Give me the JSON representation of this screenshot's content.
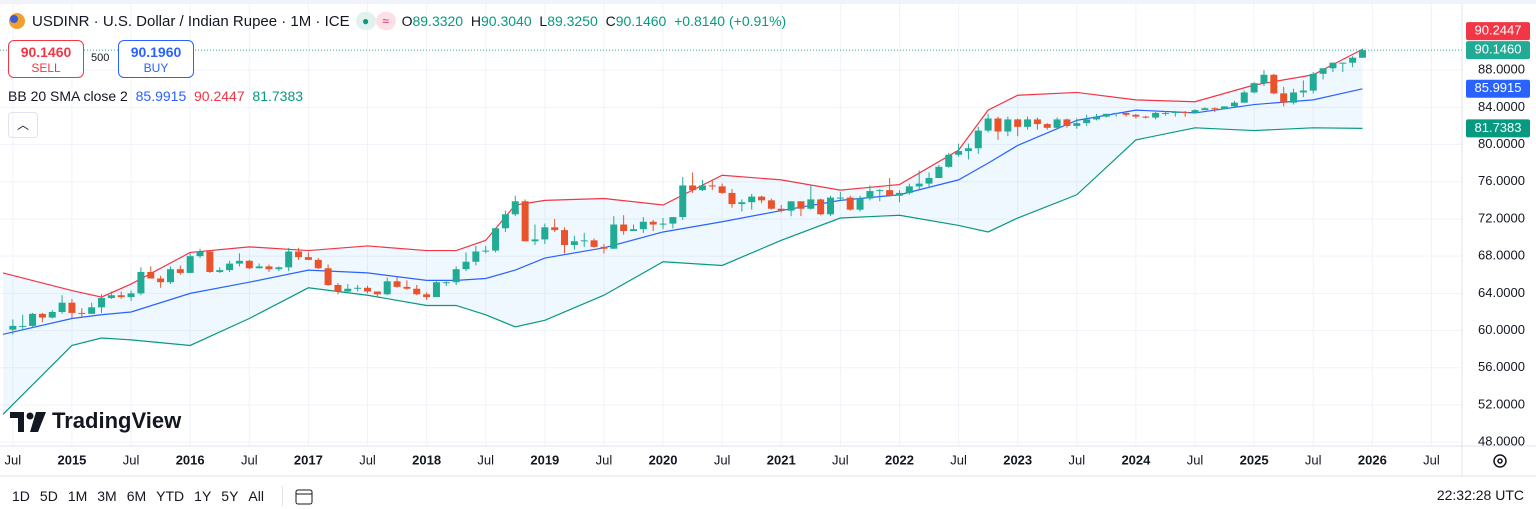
{
  "header": {
    "symbol": "USDINR · U.S. Dollar / Indian Rupee · 1M · ICE",
    "o_label": "O",
    "open": "89.3320",
    "h_label": "H",
    "high": "90.3040",
    "l_label": "L",
    "low": "89.3250",
    "c_label": "C",
    "change": "+0.8140 (+0.91%)"
  },
  "trade": {
    "sell_price": "90.1460",
    "sell": "SELL",
    "quantity": "500",
    "buy_price": "90.1960",
    "buy": "BUY"
  },
  "logo": "TradingView",
  "toolbar": {
    "ranges": [
      "1D",
      "5D",
      "1M",
      "3M",
      "6M",
      "YTD",
      "1Y",
      "5Y",
      "All"
    ],
    "clock": "22:32:28 UTC"
  },
  "chart_data": {
    "type": "candlestick",
    "up_color": "#22ab94",
    "down_color": "#e8532b",
    "grid": true,
    "xlim": [
      "2014-06",
      "2026-10"
    ],
    "ylim": [
      47.7,
      95.0
    ],
    "yticks": [
      {
        "value": 48,
        "label": "48.0000"
      },
      {
        "value": 52,
        "label": "52.0000"
      },
      {
        "value": 56,
        "label": "56.0000"
      },
      {
        "value": 60,
        "label": "60.0000"
      },
      {
        "value": 64,
        "label": "64.0000"
      },
      {
        "value": 68,
        "label": "68.0000"
      },
      {
        "value": 72,
        "label": "72.0000"
      },
      {
        "value": 76,
        "label": "76.0000"
      },
      {
        "value": 80,
        "label": "80.0000"
      },
      {
        "value": 84,
        "label": "84.0000"
      },
      {
        "value": 88,
        "label": "88.0000"
      }
    ],
    "xticks": [
      {
        "value": "2014-07",
        "label": "Jul"
      },
      {
        "value": "2015-01",
        "label": "2015"
      },
      {
        "value": "2015-07",
        "label": "Jul"
      },
      {
        "value": "2016-01",
        "label": "2016"
      },
      {
        "value": "2016-07",
        "label": "Jul"
      },
      {
        "value": "2017-01",
        "label": "2017"
      },
      {
        "value": "2017-07",
        "label": "Jul"
      },
      {
        "value": "2018-01",
        "label": "2018"
      },
      {
        "value": "2018-07",
        "label": "Jul"
      },
      {
        "value": "2019-01",
        "label": "2019"
      },
      {
        "value": "2019-07",
        "label": "Jul"
      },
      {
        "value": "2020-01",
        "label": "2020"
      },
      {
        "value": "2020-07",
        "label": "Jul"
      },
      {
        "value": "2021-01",
        "label": "2021"
      },
      {
        "value": "2021-07",
        "label": "Jul"
      },
      {
        "value": "2022-01",
        "label": "2022"
      },
      {
        "value": "2022-07",
        "label": "Jul"
      },
      {
        "value": "2023-01",
        "label": "2023"
      },
      {
        "value": "2023-07",
        "label": "Jul"
      },
      {
        "value": "2024-01",
        "label": "2024"
      },
      {
        "value": "2024-07",
        "label": "Jul"
      },
      {
        "value": "2025-01",
        "label": "2025"
      },
      {
        "value": "2025-07",
        "label": "Jul"
      },
      {
        "value": "2026-01",
        "label": "2026"
      },
      {
        "value": "2026-07",
        "label": "Jul"
      }
    ],
    "x": [
      "2014-07",
      "2014-08",
      "2014-09",
      "2014-10",
      "2014-11",
      "2014-12",
      "2015-01",
      "2015-02",
      "2015-03",
      "2015-04",
      "2015-05",
      "2015-06",
      "2015-07",
      "2015-08",
      "2015-09",
      "2015-10",
      "2015-11",
      "2015-12",
      "2016-01",
      "2016-02",
      "2016-03",
      "2016-04",
      "2016-05",
      "2016-06",
      "2016-07",
      "2016-08",
      "2016-09",
      "2016-10",
      "2016-11",
      "2016-12",
      "2017-01",
      "2017-02",
      "2017-03",
      "2017-04",
      "2017-05",
      "2017-06",
      "2017-07",
      "2017-08",
      "2017-09",
      "2017-10",
      "2017-11",
      "2017-12",
      "2018-01",
      "2018-02",
      "2018-03",
      "2018-04",
      "2018-05",
      "2018-06",
      "2018-07",
      "2018-08",
      "2018-09",
      "2018-10",
      "2018-11",
      "2018-12",
      "2019-01",
      "2019-02",
      "2019-03",
      "2019-04",
      "2019-05",
      "2019-06",
      "2019-07",
      "2019-08",
      "2019-09",
      "2019-10",
      "2019-11",
      "2019-12",
      "2020-01",
      "2020-02",
      "2020-03",
      "2020-04",
      "2020-05",
      "2020-06",
      "2020-07",
      "2020-08",
      "2020-09",
      "2020-10",
      "2020-11",
      "2020-12",
      "2021-01",
      "2021-02",
      "2021-03",
      "2021-04",
      "2021-05",
      "2021-06",
      "2021-07",
      "2021-08",
      "2021-09",
      "2021-10",
      "2021-11",
      "2021-12",
      "2022-01",
      "2022-02",
      "2022-03",
      "2022-04",
      "2022-05",
      "2022-06",
      "2022-07",
      "2022-08",
      "2022-09",
      "2022-10",
      "2022-11",
      "2022-12",
      "2023-01",
      "2023-02",
      "2023-03",
      "2023-04",
      "2023-05",
      "2023-06",
      "2023-07",
      "2023-08",
      "2023-09",
      "2023-10",
      "2023-11",
      "2023-12",
      "2024-01",
      "2024-02",
      "2024-03",
      "2024-04",
      "2024-05",
      "2024-06",
      "2024-07",
      "2024-08",
      "2024-09",
      "2024-10",
      "2024-11",
      "2024-12",
      "2025-01",
      "2025-02",
      "2025-03",
      "2025-04",
      "2025-05",
      "2025-06",
      "2025-07",
      "2025-08",
      "2025-09",
      "2025-10",
      "2025-11",
      "2025-12"
    ],
    "ohlc": [
      [
        60.1,
        61.2,
        59.6,
        60.5
      ],
      [
        60.5,
        61.7,
        60.0,
        60.5
      ],
      [
        60.5,
        61.9,
        60.3,
        61.8
      ],
      [
        61.8,
        61.9,
        60.9,
        61.4
      ],
      [
        61.4,
        62.2,
        61.3,
        62.0
      ],
      [
        62.0,
        63.8,
        61.8,
        63.0
      ],
      [
        63.0,
        63.4,
        61.3,
        61.9
      ],
      [
        61.9,
        62.4,
        61.4,
        61.8
      ],
      [
        61.8,
        63.0,
        61.8,
        62.5
      ],
      [
        62.5,
        63.9,
        61.9,
        63.5
      ],
      [
        63.5,
        64.2,
        63.4,
        63.8
      ],
      [
        63.8,
        64.2,
        63.4,
        63.6
      ],
      [
        63.6,
        64.3,
        63.2,
        64.0
      ],
      [
        64.0,
        66.8,
        63.8,
        66.3
      ],
      [
        66.3,
        66.9,
        65.6,
        65.6
      ],
      [
        65.6,
        65.9,
        64.6,
        65.2
      ],
      [
        65.2,
        66.9,
        65.0,
        66.6
      ],
      [
        66.6,
        67.0,
        66.0,
        66.2
      ],
      [
        66.2,
        68.3,
        66.2,
        68.0
      ],
      [
        68.0,
        68.8,
        67.8,
        68.5
      ],
      [
        68.5,
        68.6,
        66.2,
        66.3
      ],
      [
        66.3,
        66.8,
        66.2,
        66.5
      ],
      [
        66.5,
        67.5,
        66.3,
        67.2
      ],
      [
        67.2,
        68.3,
        66.9,
        67.5
      ],
      [
        67.5,
        67.6,
        66.6,
        66.7
      ],
      [
        66.7,
        67.2,
        66.7,
        66.9
      ],
      [
        66.9,
        67.1,
        66.3,
        66.6
      ],
      [
        66.6,
        66.9,
        66.4,
        66.8
      ],
      [
        66.8,
        68.9,
        66.4,
        68.5
      ],
      [
        68.5,
        68.9,
        67.6,
        67.9
      ],
      [
        67.9,
        68.4,
        67.6,
        67.6
      ],
      [
        67.6,
        67.8,
        66.6,
        66.7
      ],
      [
        66.7,
        67.1,
        64.8,
        64.9
      ],
      [
        64.9,
        65.1,
        63.9,
        64.2
      ],
      [
        64.2,
        65.0,
        64.0,
        64.5
      ],
      [
        64.5,
        64.9,
        64.2,
        64.6
      ],
      [
        64.6,
        64.8,
        64.0,
        64.2
      ],
      [
        64.2,
        64.2,
        63.6,
        63.9
      ],
      [
        63.9,
        65.7,
        63.8,
        65.3
      ],
      [
        65.3,
        65.8,
        64.6,
        64.7
      ],
      [
        64.7,
        65.4,
        64.4,
        64.5
      ],
      [
        64.5,
        64.9,
        63.8,
        63.9
      ],
      [
        63.9,
        64.1,
        63.3,
        63.6
      ],
      [
        63.6,
        65.3,
        63.6,
        65.2
      ],
      [
        65.2,
        65.3,
        64.8,
        65.2
      ],
      [
        65.2,
        66.9,
        64.9,
        66.6
      ],
      [
        66.6,
        68.4,
        66.4,
        67.4
      ],
      [
        67.4,
        69.1,
        67.0,
        68.5
      ],
      [
        68.5,
        69.1,
        68.3,
        68.6
      ],
      [
        68.6,
        71.0,
        68.4,
        71.0
      ],
      [
        71.0,
        72.9,
        70.6,
        72.5
      ],
      [
        72.5,
        74.5,
        72.3,
        73.9
      ],
      [
        73.9,
        74.1,
        69.6,
        69.6
      ],
      [
        69.6,
        71.4,
        69.2,
        69.8
      ],
      [
        69.8,
        71.5,
        69.3,
        71.1
      ],
      [
        71.1,
        72.0,
        70.6,
        70.8
      ],
      [
        70.8,
        71.1,
        68.3,
        69.2
      ],
      [
        69.2,
        70.2,
        68.7,
        69.6
      ],
      [
        69.6,
        70.5,
        69.0,
        69.7
      ],
      [
        69.7,
        69.9,
        68.9,
        69.0
      ],
      [
        69.0,
        69.3,
        68.3,
        68.8
      ],
      [
        68.8,
        72.3,
        68.8,
        71.4
      ],
      [
        71.4,
        72.4,
        70.3,
        70.7
      ],
      [
        70.7,
        71.4,
        70.7,
        70.9
      ],
      [
        70.9,
        72.2,
        70.5,
        71.7
      ],
      [
        71.7,
        71.9,
        70.7,
        71.4
      ],
      [
        71.4,
        72.1,
        70.9,
        71.5
      ],
      [
        71.5,
        72.2,
        71.0,
        72.2
      ],
      [
        72.2,
        76.5,
        71.9,
        75.6
      ],
      [
        75.6,
        77.0,
        74.8,
        75.1
      ],
      [
        75.1,
        76.2,
        75.0,
        75.6
      ],
      [
        75.6,
        76.2,
        75.1,
        75.5
      ],
      [
        75.5,
        75.8,
        74.7,
        74.8
      ],
      [
        74.8,
        75.2,
        73.2,
        73.6
      ],
      [
        73.6,
        74.1,
        72.8,
        73.8
      ],
      [
        73.8,
        74.7,
        73.0,
        74.4
      ],
      [
        74.4,
        74.5,
        73.7,
        74.0
      ],
      [
        74.0,
        74.2,
        73.0,
        73.1
      ],
      [
        73.1,
        73.5,
        72.7,
        72.9
      ],
      [
        72.9,
        73.9,
        72.3,
        73.9
      ],
      [
        73.9,
        73.9,
        72.3,
        73.1
      ],
      [
        73.1,
        75.6,
        73.0,
        74.1
      ],
      [
        74.1,
        74.2,
        72.4,
        72.5
      ],
      [
        72.5,
        74.5,
        72.3,
        74.3
      ],
      [
        74.3,
        74.9,
        74.0,
        74.3
      ],
      [
        74.3,
        74.5,
        72.9,
        73.0
      ],
      [
        73.0,
        74.5,
        72.8,
        74.2
      ],
      [
        74.2,
        75.6,
        74.0,
        75.0
      ],
      [
        75.0,
        75.2,
        73.9,
        75.1
      ],
      [
        75.1,
        76.4,
        74.4,
        74.5
      ],
      [
        74.5,
        75.1,
        73.8,
        74.8
      ],
      [
        74.8,
        75.8,
        74.6,
        75.5
      ],
      [
        75.5,
        77.2,
        75.2,
        75.8
      ],
      [
        75.8,
        77.0,
        75.3,
        76.4
      ],
      [
        76.4,
        77.8,
        76.4,
        77.6
      ],
      [
        77.6,
        79.1,
        77.5,
        78.9
      ],
      [
        78.9,
        80.1,
        78.7,
        79.3
      ],
      [
        79.3,
        80.1,
        78.4,
        79.6
      ],
      [
        79.6,
        81.9,
        79.0,
        81.5
      ],
      [
        81.5,
        83.3,
        81.3,
        82.8
      ],
      [
        82.8,
        83.0,
        80.5,
        81.4
      ],
      [
        81.4,
        83.0,
        80.9,
        82.7
      ],
      [
        82.7,
        82.8,
        80.9,
        81.9
      ],
      [
        81.9,
        83.0,
        81.6,
        82.7
      ],
      [
        82.7,
        82.9,
        81.6,
        82.2
      ],
      [
        82.2,
        82.3,
        81.6,
        81.8
      ],
      [
        81.8,
        82.9,
        81.6,
        82.7
      ],
      [
        82.7,
        82.8,
        81.8,
        82.0
      ],
      [
        82.0,
        82.8,
        81.7,
        82.3
      ],
      [
        82.3,
        83.2,
        82.0,
        82.7
      ],
      [
        82.7,
        83.3,
        82.6,
        83.0
      ],
      [
        83.0,
        83.3,
        82.9,
        83.3
      ],
      [
        83.3,
        83.4,
        83.0,
        83.4
      ],
      [
        83.4,
        83.4,
        83.0,
        83.2
      ],
      [
        83.2,
        83.3,
        82.8,
        83.0
      ],
      [
        83.0,
        83.1,
        82.8,
        82.9
      ],
      [
        82.9,
        83.5,
        82.7,
        83.4
      ],
      [
        83.4,
        83.6,
        83.1,
        83.4
      ],
      [
        83.4,
        83.6,
        83.0,
        83.5
      ],
      [
        83.5,
        83.6,
        83.0,
        83.4
      ],
      [
        83.4,
        83.8,
        83.4,
        83.7
      ],
      [
        83.7,
        84.0,
        83.7,
        83.9
      ],
      [
        83.9,
        84.0,
        83.5,
        83.8
      ],
      [
        83.8,
        84.1,
        83.8,
        84.1
      ],
      [
        84.1,
        84.7,
        84.0,
        84.5
      ],
      [
        84.5,
        85.8,
        84.5,
        85.6
      ],
      [
        85.6,
        86.7,
        85.5,
        86.6
      ],
      [
        86.6,
        88.0,
        86.3,
        87.5
      ],
      [
        87.5,
        87.6,
        85.4,
        85.5
      ],
      [
        85.5,
        86.2,
        84.1,
        84.5
      ],
      [
        84.5,
        86.0,
        84.3,
        85.6
      ],
      [
        85.6,
        86.9,
        85.1,
        85.8
      ],
      [
        85.8,
        87.8,
        85.5,
        87.6
      ],
      [
        87.6,
        88.2,
        87.0,
        88.2
      ],
      [
        88.2,
        88.8,
        87.8,
        88.8
      ],
      [
        88.8,
        88.8,
        87.8,
        88.8
      ],
      [
        88.8,
        89.5,
        88.3,
        89.332
      ],
      [
        89.332,
        90.304,
        89.325,
        90.146
      ]
    ],
    "last_close_label": "90.1460",
    "indicator": {
      "label": "BB 20 SMA close 2",
      "fill": "rgba(33,150,243,0.07)",
      "x": [
        "2014-06",
        "2015-01",
        "2015-04",
        "2015-07",
        "2016-01",
        "2016-07",
        "2017-01",
        "2017-07",
        "2018-01",
        "2018-04",
        "2018-07",
        "2018-10",
        "2019-01",
        "2019-07",
        "2020-01",
        "2020-07",
        "2021-01",
        "2021-07",
        "2022-01",
        "2022-07",
        "2022-10",
        "2023-01",
        "2023-07",
        "2024-01",
        "2024-07",
        "2025-01",
        "2025-07",
        "2025-12"
      ],
      "series": [
        {
          "color": "#2962ff",
          "values": [
            59.6,
            61.3,
            61.7,
            62.0,
            64.0,
            65.2,
            66.5,
            66.2,
            65.4,
            65.4,
            65.6,
            66.5,
            67.8,
            68.9,
            70.6,
            71.7,
            72.9,
            74.0,
            74.6,
            76.2,
            78.0,
            79.9,
            82.6,
            83.7,
            83.4,
            84.3,
            84.8,
            85.9915
          ]
        },
        {
          "color": "#f23645",
          "values": [
            66.2,
            64.3,
            63.6,
            65.0,
            68.4,
            69.0,
            68.6,
            69.1,
            68.6,
            68.6,
            69.7,
            73.5,
            74.0,
            74.2,
            73.5,
            76.7,
            76.2,
            75.1,
            75.7,
            79.4,
            83.7,
            85.3,
            85.6,
            84.8,
            84.6,
            86.4,
            87.5,
            90.2447
          ]
        },
        {
          "color": "#089981",
          "values": [
            51.0,
            58.4,
            59.2,
            59.0,
            58.4,
            61.3,
            64.6,
            63.8,
            62.7,
            62.7,
            61.7,
            60.4,
            61.1,
            63.8,
            67.4,
            67.0,
            69.7,
            72.1,
            72.4,
            71.3,
            70.6,
            72.1,
            74.6,
            80.5,
            81.8,
            81.5,
            81.8,
            81.7383
          ]
        }
      ]
    }
  }
}
